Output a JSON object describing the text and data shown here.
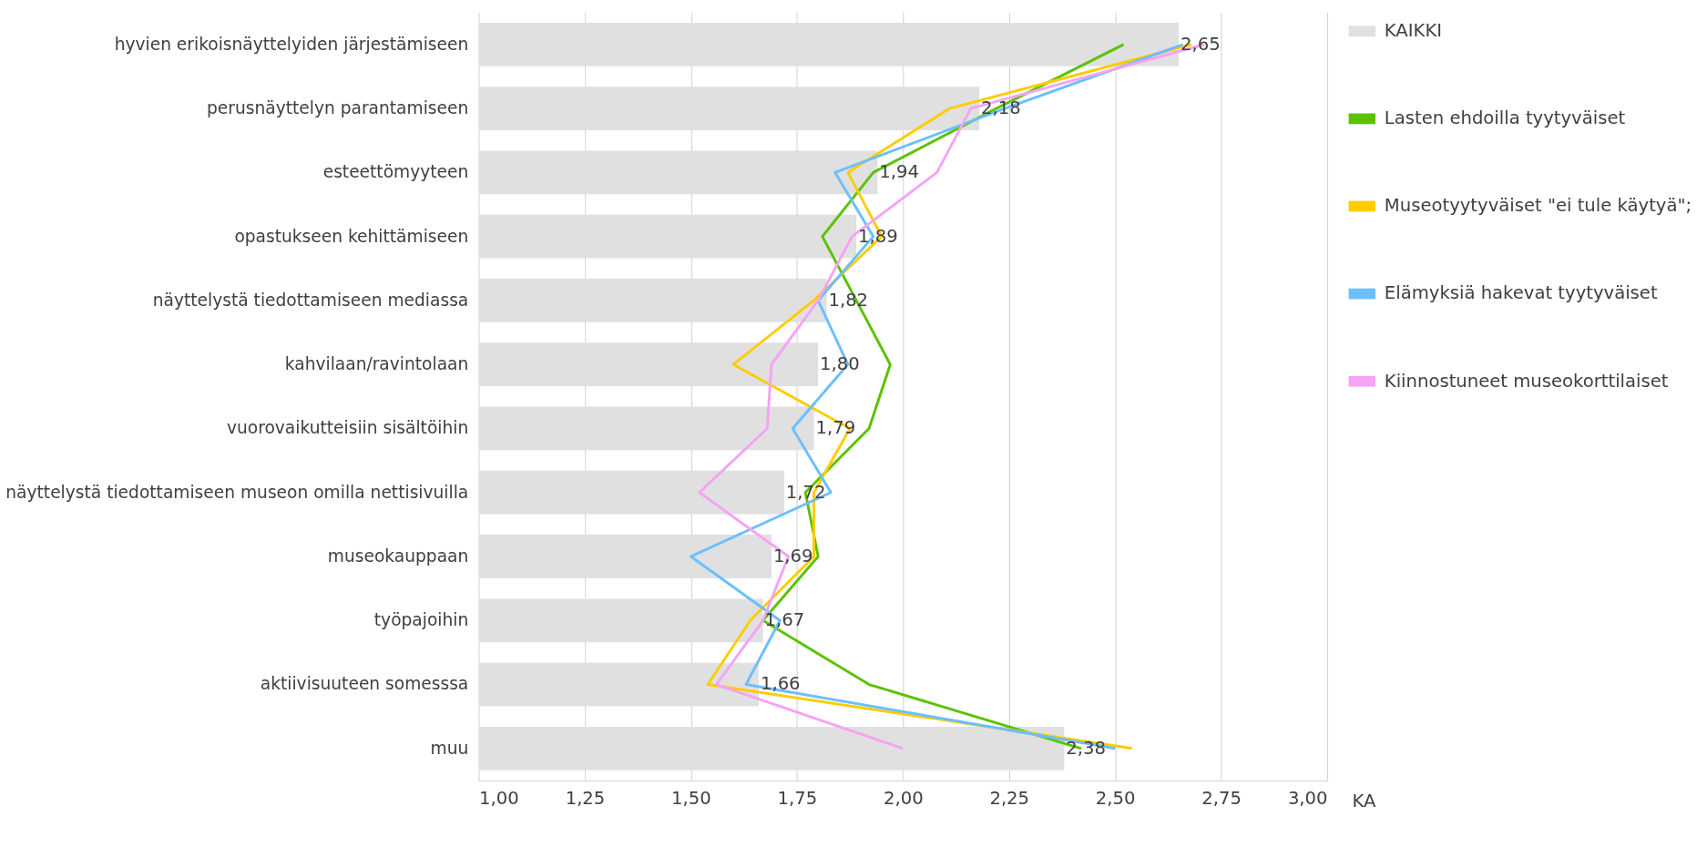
{
  "chart_data": {
    "type": "bar",
    "orientation": "horizontal",
    "xlabel": "KA",
    "categories": [
      "hyvien erikoisnäyttelyiden järjestämiseen",
      "perusnäyttelyn parantamiseen",
      "esteettömyyteen",
      "opastukseen kehittämiseen",
      "näyttelystä tiedottamiseen mediassa",
      "kahvilaan/ravintolaan",
      "vuorovaikutteisiin sisältöihin",
      "näyttelystä tiedottamiseen museon omilla nettisivuilla",
      "museokauppaan",
      "työpajoihin",
      "aktiivisuuteen somesssa",
      "muu"
    ],
    "series": [
      {
        "name": "KAIKKI",
        "color": "#e0e0e0",
        "values": [
          2.65,
          2.18,
          1.94,
          1.89,
          1.82,
          1.8,
          1.79,
          1.72,
          1.69,
          1.67,
          1.66,
          2.38
        ],
        "value_labels": [
          "2,65",
          "2,18",
          "1,94",
          "1,89",
          "1,82",
          "1,80",
          "1,79",
          "1,72",
          "1,69",
          "1,67",
          "1,66",
          "2,38"
        ]
      },
      {
        "name": "Lasten ehdoilla tyytyväiset",
        "type": "line",
        "color": "#5bc200",
        "values": [
          2.52,
          2.22,
          1.93,
          1.81,
          1.89,
          1.97,
          1.92,
          1.77,
          1.8,
          1.67,
          1.92,
          2.42
        ]
      },
      {
        "name": "Museotyytyväiset \"ei tule käytyä\";",
        "type": "line",
        "color": "#ffcc00",
        "values": [
          2.68,
          2.11,
          1.87,
          1.95,
          1.79,
          1.6,
          1.875,
          1.79,
          1.79,
          1.64,
          1.54,
          2.54
        ]
      },
      {
        "name": "Elämyksiä hakevat tyytyväiset",
        "type": "line",
        "color": "#6bbfff",
        "values": [
          2.66,
          2.24,
          1.84,
          1.93,
          1.8,
          1.87,
          1.74,
          1.83,
          1.5,
          1.71,
          1.63,
          2.5
        ]
      },
      {
        "name": "Kiinnostuneet museokorttilaiset",
        "type": "line",
        "color": "#f5a3f5",
        "values": [
          2.71,
          2.16,
          2.08,
          1.88,
          1.8,
          1.69,
          1.68,
          1.52,
          1.73,
          1.67,
          1.56,
          2.0
        ]
      }
    ],
    "xlim": [
      1.0,
      3.0
    ],
    "xticks": [
      {
        "value": 1.0,
        "label": "1,00"
      },
      {
        "value": 1.25,
        "label": "1,25"
      },
      {
        "value": 1.5,
        "label": "1,50"
      },
      {
        "value": 1.75,
        "label": "1,75"
      },
      {
        "value": 2.0,
        "label": "2,00"
      },
      {
        "value": 2.25,
        "label": "2,25"
      },
      {
        "value": 2.5,
        "label": "2,50"
      },
      {
        "value": 2.75,
        "label": "2,75"
      },
      {
        "value": 3.0,
        "label": "3,00"
      }
    ],
    "grid": "x",
    "legend": "right",
    "line_style": "solid",
    "marker": "none"
  }
}
